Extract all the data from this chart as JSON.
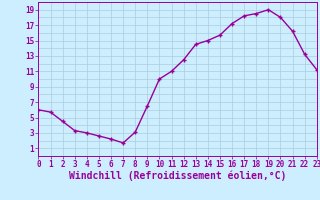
{
  "x": [
    0,
    1,
    2,
    3,
    4,
    5,
    6,
    7,
    8,
    9,
    10,
    11,
    12,
    13,
    14,
    15,
    16,
    17,
    18,
    19,
    20,
    21,
    22,
    23
  ],
  "y": [
    6.0,
    5.7,
    4.5,
    3.3,
    3.0,
    2.6,
    2.2,
    1.7,
    3.1,
    6.5,
    10.0,
    11.0,
    12.5,
    14.5,
    15.0,
    15.7,
    17.2,
    18.2,
    18.5,
    19.0,
    18.0,
    16.2,
    13.2,
    11.2
  ],
  "line_color": "#990099",
  "marker": "+",
  "marker_size": 3,
  "marker_lw": 1.0,
  "bg_color": "#cceeff",
  "grid_color": "#aaccdd",
  "xlabel": "Windchill (Refroidissement éolien,°C)",
  "ylabel": "",
  "xlim": [
    0,
    23
  ],
  "ylim": [
    0,
    20
  ],
  "yticks": [
    1,
    3,
    5,
    7,
    9,
    11,
    13,
    15,
    17,
    19
  ],
  "xticks": [
    0,
    1,
    2,
    3,
    4,
    5,
    6,
    7,
    8,
    9,
    10,
    11,
    12,
    13,
    14,
    15,
    16,
    17,
    18,
    19,
    20,
    21,
    22,
    23
  ],
  "tick_fontsize": 5.5,
  "xlabel_fontsize": 7.0,
  "linewidth": 1.0
}
